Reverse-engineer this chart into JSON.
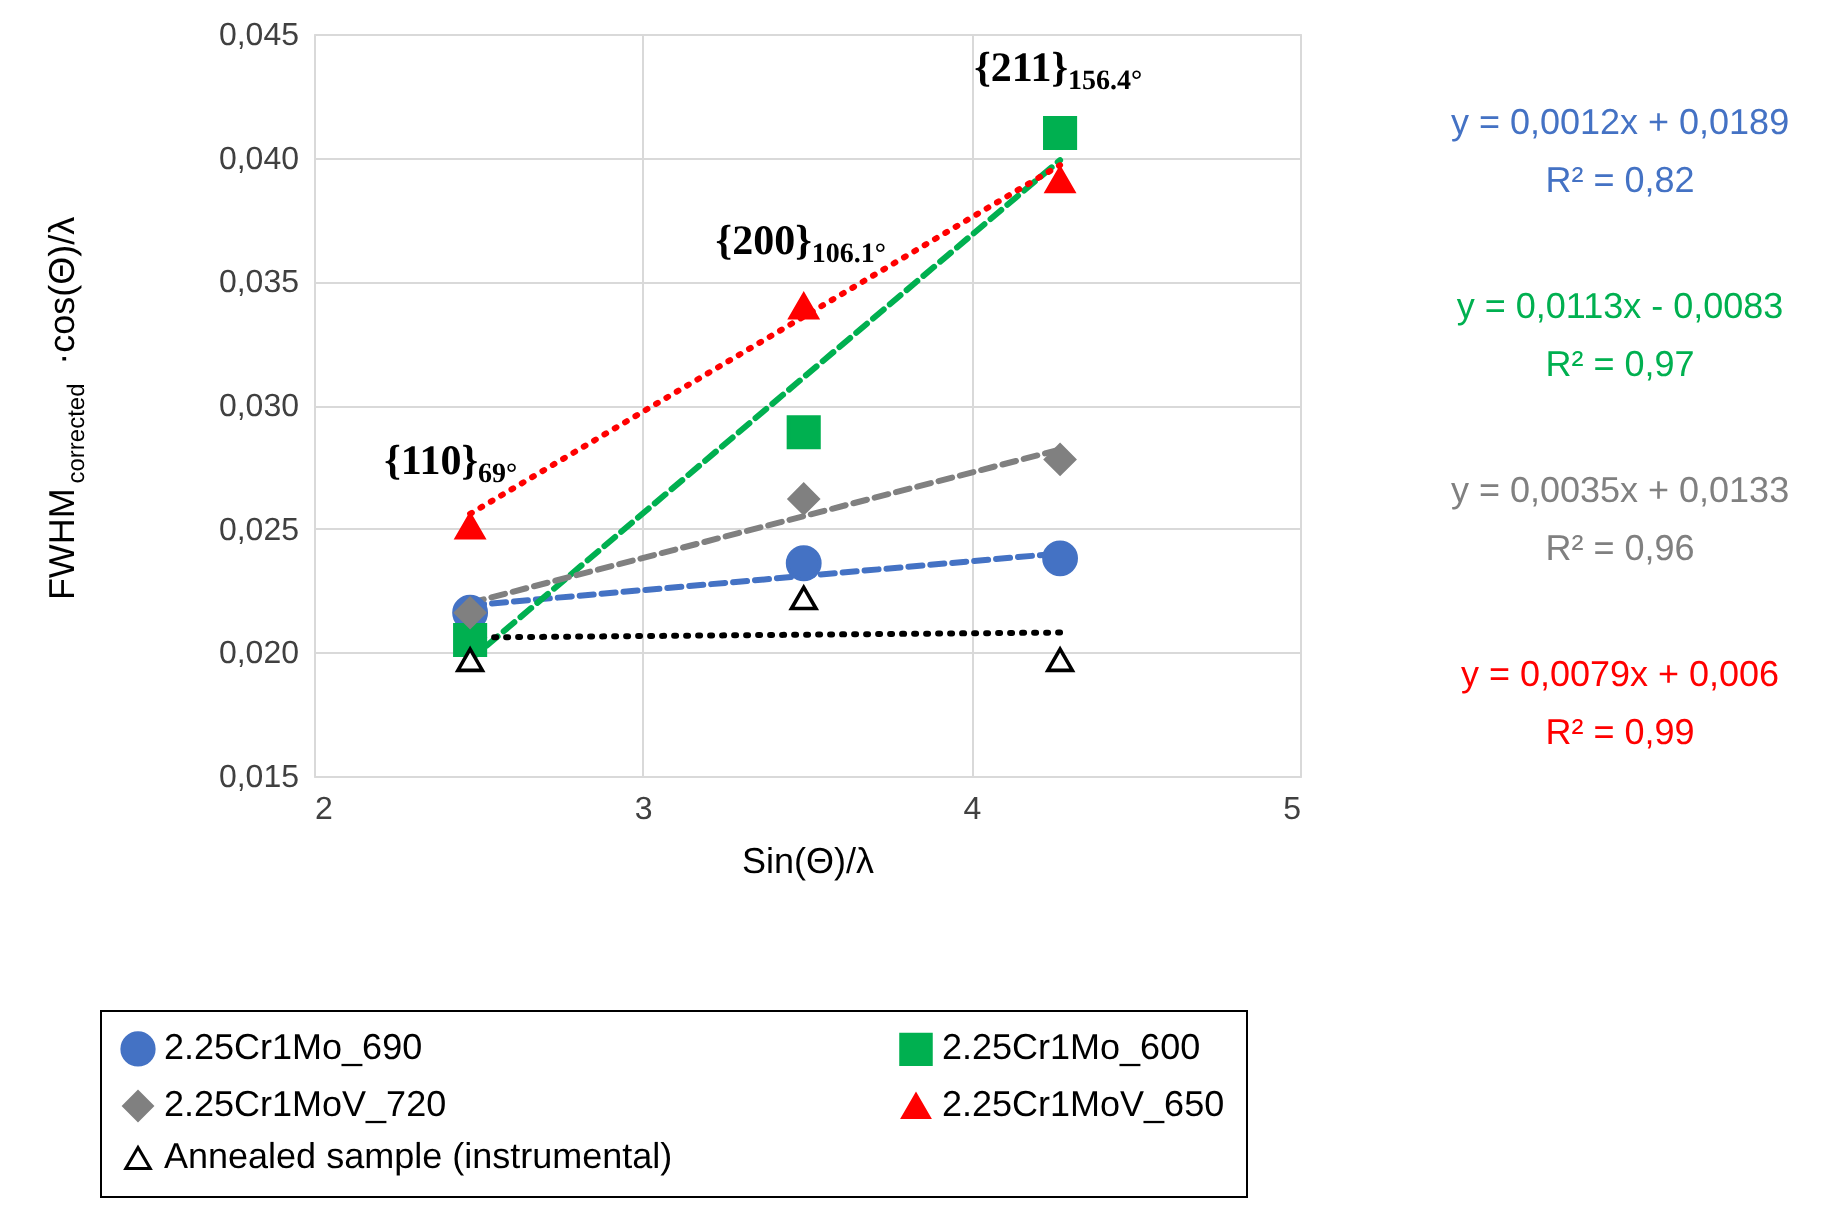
{
  "chart_data": {
    "type": "scatter",
    "xlabel": "Sin(Θ)/λ",
    "ylabel": "FWHM$_{corrected}$·cos(Θ)/λ",
    "xlim": [
      2,
      5
    ],
    "xticks": [
      2,
      3,
      4,
      5
    ],
    "ylim": [
      0.015,
      0.045
    ],
    "yticks": [
      {
        "value": 0.015,
        "label": "0,015"
      },
      {
        "value": 0.02,
        "label": "0,020"
      },
      {
        "value": 0.025,
        "label": "0,025"
      },
      {
        "value": 0.03,
        "label": "0,030"
      },
      {
        "value": 0.035,
        "label": "0,035"
      },
      {
        "value": 0.04,
        "label": "0,040"
      },
      {
        "value": 0.045,
        "label": "0,045"
      }
    ],
    "grid": true,
    "legend": "bottom",
    "series": [
      {
        "name": "2.25Cr1Mo_690",
        "color": "#4472c4",
        "marker": "circle",
        "x": [
          2.475,
          3.49,
          4.27
        ],
        "values": [
          0.0216,
          0.0236,
          0.0238
        ]
      },
      {
        "name": "2.25Cr1Mo_600",
        "color": "#00b050",
        "marker": "square",
        "x": [
          2.475,
          3.49,
          4.27
        ],
        "values": [
          0.0205,
          0.0289,
          0.041
        ]
      },
      {
        "name": "2.25Cr1MoV_720",
        "color": "#808080",
        "marker": "diamond",
        "x": [
          2.475,
          3.49,
          4.27
        ],
        "values": [
          0.0216,
          0.0262,
          0.0278
        ]
      },
      {
        "name": "2.25Cr1MoV_650",
        "color": "#ff0000",
        "marker": "triangle",
        "x": [
          2.475,
          3.49,
          4.27
        ],
        "values": [
          0.0251,
          0.034,
          0.0391
        ]
      },
      {
        "name": "Annealed sample (instrumental)",
        "color": "#000000",
        "marker": "triangle_open",
        "x": [
          2.475,
          3.49,
          4.27
        ],
        "values": [
          0.0197,
          0.0222,
          0.0197
        ]
      },
      {
        "type": "line",
        "color": "#4472c4",
        "line_style": "dashed",
        "x": [
          2.475,
          4.27
        ],
        "values": [
          0.0219,
          0.024
        ]
      },
      {
        "type": "line",
        "color": "#00b050",
        "line_style": "dashed",
        "x": [
          2.475,
          4.27
        ],
        "values": [
          0.0197,
          0.0399
        ]
      },
      {
        "type": "line",
        "color": "#808080",
        "line_style": "dashed",
        "x": [
          2.475,
          4.27
        ],
        "values": [
          0.022,
          0.0282
        ]
      },
      {
        "type": "line",
        "color": "#ff0000",
        "line_style": "dotted",
        "x": [
          2.475,
          4.27
        ],
        "values": [
          0.0256,
          0.0397
        ]
      },
      {
        "type": "line",
        "color": "#000000",
        "line_style": "dotted",
        "x": [
          2.475,
          4.27
        ],
        "values": [
          0.0206,
          0.0208
        ]
      }
    ],
    "annotations": [
      {
        "text": "{110}$_{69°}$",
        "x": 2.475,
        "y": 0.0251
      },
      {
        "text": "{200}$_{106.1°}$",
        "x": 3.49,
        "y": 0.034
      },
      {
        "text": "{211}$_{156.4°}$",
        "x": 4.27,
        "y": 0.041
      },
      "y = 0,0012x + 0,0189\nR² = 0,82",
      "y = 0,0113x - 0,0083\nR² = 0,97",
      "y = 0,0035x + 0,0133\nR² = 0,96",
      "y = 0,0079x + 0,006\nR² = 0,99"
    ]
  }
}
